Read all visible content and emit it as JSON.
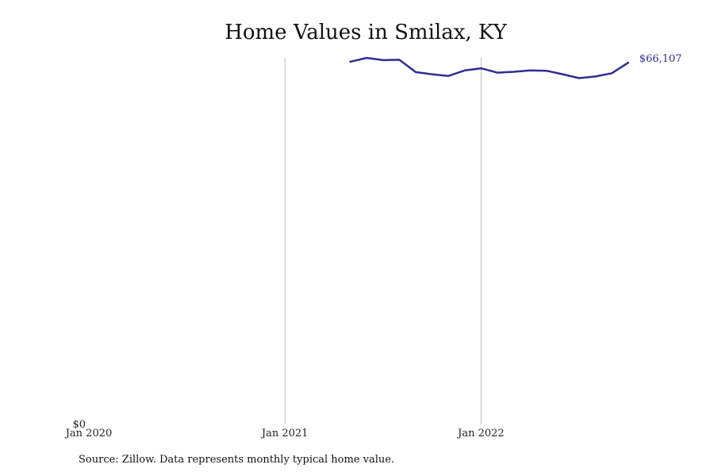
{
  "chart_data": {
    "type": "line",
    "title": "Home Values in Smilax, KY",
    "xlabel": "",
    "ylabel": "",
    "ylim": [
      0,
      67000
    ],
    "xlim": [
      "2020-01",
      "2022-12"
    ],
    "grid": "vertical lines at year ticks",
    "x_ticks": [
      "Jan 2020",
      "Jan 2021",
      "Jan 2022"
    ],
    "y_ticks": [
      "$0"
    ],
    "series": [
      {
        "color": "#2e2e91",
        "x": [
          "2021-05",
          "2021-06",
          "2021-07",
          "2021-08",
          "2021-09",
          "2021-10",
          "2021-11",
          "2021-12",
          "2022-01",
          "2022-02",
          "2022-03",
          "2022-04",
          "2022-05",
          "2022-06",
          "2022-07",
          "2022-08",
          "2022-09",
          "2022-10"
        ],
        "values": [
          66300,
          67000,
          66600,
          66650,
          64400,
          64000,
          63700,
          64700,
          65100,
          64300,
          64450,
          64700,
          64650,
          64000,
          63300,
          63600,
          64200,
          66107
        ]
      }
    ],
    "end_label": "$66,107"
  },
  "source_note": "Source: Zillow. Data represents monthly typical home value."
}
